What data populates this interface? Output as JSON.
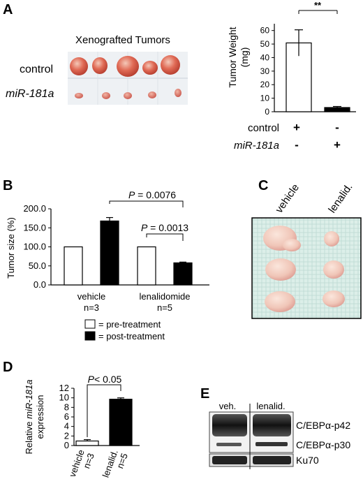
{
  "panel_A": {
    "letter": "A",
    "photo_title": "Xenografted Tumors",
    "row_labels": [
      "control",
      "miR-181a"
    ],
    "significance": "**",
    "row_names": [
      "control",
      "miR-181a"
    ],
    "plus": "+",
    "minus": "-"
  },
  "panel_B": {
    "letter": "B",
    "legend_pre": "= pre-treatment",
    "legend_post": "= post-treatment",
    "p_labels": [
      "P = 0.0076",
      "P = 0.0013"
    ]
  },
  "panel_C": {
    "letter": "C",
    "col_labels": [
      "vehicle",
      "lenalid."
    ]
  },
  "panel_D": {
    "letter": "D",
    "p_label": "P< 0.05"
  },
  "panel_E": {
    "letter": "E",
    "lane_labels": [
      "veh.",
      "lenalid."
    ],
    "band_labels": [
      "C/EBPα-p42",
      "C/EBPα-p30",
      "Ku70"
    ]
  },
  "chart_data": [
    {
      "type": "bar",
      "panel": "A",
      "categories": [
        "control",
        "miR-181a"
      ],
      "values": [
        52.5,
        3.2
      ],
      "errors": [
        10,
        0.8
      ],
      "ylabel": "Tumor Weight (mg)",
      "ylim": [
        0,
        65
      ],
      "yticks": [
        0,
        10,
        20,
        30,
        40,
        50,
        60
      ],
      "colors": [
        "#ffffff",
        "#000000"
      ]
    },
    {
      "type": "bar",
      "panel": "B",
      "categories": [
        "vehicle\nn=3",
        "lenalidomide\nn=5"
      ],
      "series": [
        {
          "name": "pre-treatment",
          "values": [
            100,
            100
          ],
          "errors": [
            0,
            0
          ],
          "color": "#ffffff"
        },
        {
          "name": "post-treatment",
          "values": [
            168,
            58
          ],
          "errors": [
            9,
            2
          ],
          "color": "#000000"
        }
      ],
      "ylabel": "Tumor size (%)",
      "ylim": [
        0,
        200
      ],
      "yticks": [
        "0.0",
        "50.0",
        "100.0",
        "150.0",
        "200.0"
      ]
    },
    {
      "type": "bar",
      "panel": "D",
      "categories": [
        "vehicle\nn=3",
        "lenalid.\nn=5"
      ],
      "values": [
        1.0,
        10.2
      ],
      "errors": [
        0.3,
        0.3
      ],
      "ylabel": "Relative miR-181a expression",
      "ylim": [
        0,
        12
      ],
      "yticks": [
        0,
        2,
        4,
        6,
        8,
        10,
        12
      ],
      "colors": [
        "#ffffff",
        "#000000"
      ]
    }
  ]
}
